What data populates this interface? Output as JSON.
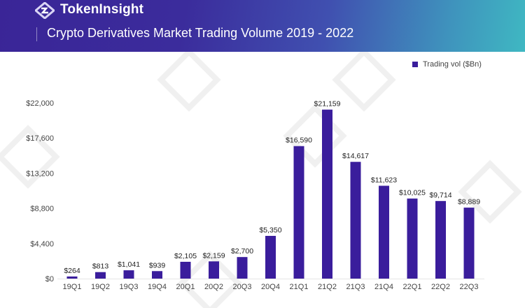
{
  "header": {
    "brand": "TokenInsight",
    "logo_icon": "tokeninsight-logo-icon",
    "title": "Crypto Derivatives Market Trading Volume 2019 - 2022"
  },
  "colors": {
    "bar": "#3a1d9c",
    "header_start": "#3a2597",
    "header_end": "#3fb8c2"
  },
  "chart_data": {
    "type": "bar",
    "title": "Crypto Derivatives Market Trading Volume 2019 - 2022",
    "xlabel": "",
    "ylabel": "",
    "categories": [
      "19Q1",
      "19Q2",
      "19Q3",
      "19Q4",
      "20Q1",
      "20Q2",
      "20Q3",
      "20Q4",
      "21Q1",
      "21Q2",
      "21Q3",
      "21Q4",
      "22Q1",
      "22Q2",
      "22Q3"
    ],
    "series": [
      {
        "name": "Trading vol ($Bn)",
        "values": [
          264,
          813,
          1041,
          939,
          2105,
          2159,
          2700,
          5350,
          16590,
          21159,
          14617,
          11623,
          10025,
          9714,
          8889
        ],
        "labels": [
          "$264",
          "$813",
          "$1,041",
          "$939",
          "$2,105",
          "$2,159",
          "$2,700",
          "$5,350",
          "$16,590",
          "$21,159",
          "$14,617",
          "$11,623",
          "$10,025",
          "$9,714",
          "$8,889"
        ]
      }
    ],
    "yticks": [
      0,
      4400,
      8800,
      13200,
      17600,
      22000
    ],
    "ytick_labels": [
      "$0",
      "$4,400",
      "$8,800",
      "$13,200",
      "$17,600",
      "$22,000"
    ],
    "ylim": [
      0,
      22000
    ],
    "grid": false,
    "legend": {
      "position": "top-right",
      "entries": [
        "Trading vol ($Bn)"
      ]
    }
  }
}
